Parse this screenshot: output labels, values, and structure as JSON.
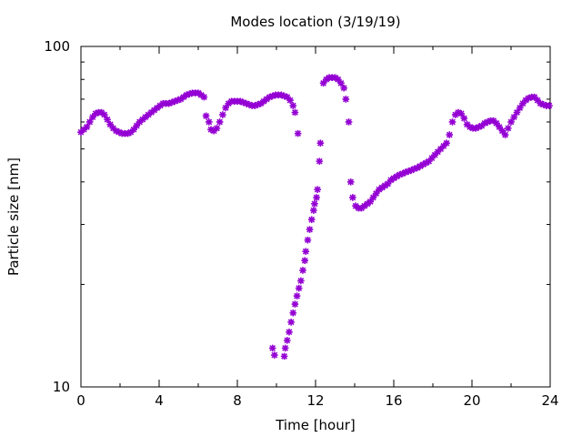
{
  "chart_data": {
    "type": "scatter",
    "title": "Modes location (3/19/19)",
    "xlabel": "Time [hour]",
    "ylabel": "Particle size [nm]",
    "xlim": [
      0,
      24
    ],
    "ylim": [
      10,
      100
    ],
    "yscale": "log",
    "grid": false,
    "x_ticks": [
      0,
      4,
      8,
      12,
      16,
      20,
      24
    ],
    "x_tick_labels": [
      "0",
      "4",
      "8",
      "12",
      "16",
      "20",
      "24"
    ],
    "y_ticks": [
      10,
      100
    ],
    "y_tick_labels": [
      "10",
      "100"
    ],
    "marker_color": "#9400d3",
    "marker": "star",
    "series": [
      {
        "values": [
          [
            0.0,
            56
          ],
          [
            0.15,
            57
          ],
          [
            0.3,
            58
          ],
          [
            0.45,
            60
          ],
          [
            0.6,
            62
          ],
          [
            0.75,
            63.5
          ],
          [
            0.9,
            64
          ],
          [
            1.05,
            64
          ],
          [
            1.2,
            63
          ],
          [
            1.35,
            61
          ],
          [
            1.5,
            59
          ],
          [
            1.65,
            57.5
          ],
          [
            1.8,
            56.5
          ],
          [
            1.95,
            56
          ],
          [
            2.1,
            55.5
          ],
          [
            2.25,
            55.5
          ],
          [
            2.4,
            55.5
          ],
          [
            2.55,
            56
          ],
          [
            2.7,
            57
          ],
          [
            2.85,
            58.5
          ],
          [
            3.0,
            60
          ],
          [
            3.15,
            61
          ],
          [
            3.3,
            62
          ],
          [
            3.45,
            63
          ],
          [
            3.6,
            64
          ],
          [
            3.75,
            65
          ],
          [
            3.9,
            66
          ],
          [
            4.05,
            67
          ],
          [
            4.2,
            68
          ],
          [
            4.35,
            68
          ],
          [
            4.5,
            68
          ],
          [
            4.65,
            68.5
          ],
          [
            4.8,
            69
          ],
          [
            4.95,
            69.5
          ],
          [
            5.1,
            70
          ],
          [
            5.25,
            71
          ],
          [
            5.4,
            72
          ],
          [
            5.55,
            72.5
          ],
          [
            5.7,
            73
          ],
          [
            5.85,
            73
          ],
          [
            6.0,
            73
          ],
          [
            6.15,
            72
          ],
          [
            6.3,
            71
          ],
          [
            6.4,
            62.5
          ],
          [
            6.55,
            60
          ],
          [
            6.65,
            57
          ],
          [
            6.8,
            56.5
          ],
          [
            6.95,
            57.5
          ],
          [
            7.1,
            60
          ],
          [
            7.25,
            63
          ],
          [
            7.4,
            66
          ],
          [
            7.55,
            68
          ],
          [
            7.7,
            69
          ],
          [
            7.85,
            69
          ],
          [
            8.0,
            69
          ],
          [
            8.15,
            69
          ],
          [
            8.3,
            68.5
          ],
          [
            8.45,
            68
          ],
          [
            8.6,
            67.5
          ],
          [
            8.75,
            67
          ],
          [
            8.9,
            67
          ],
          [
            9.05,
            67.5
          ],
          [
            9.2,
            68
          ],
          [
            9.35,
            69
          ],
          [
            9.5,
            70
          ],
          [
            9.65,
            71
          ],
          [
            9.8,
            71.5
          ],
          [
            9.95,
            72
          ],
          [
            10.1,
            72
          ],
          [
            10.25,
            72
          ],
          [
            10.4,
            71.5
          ],
          [
            10.55,
            71
          ],
          [
            10.7,
            69.5
          ],
          [
            10.85,
            67
          ],
          [
            10.95,
            64
          ],
          [
            11.1,
            55.5
          ],
          [
            9.8,
            13.0
          ],
          [
            9.9,
            12.4
          ],
          [
            10.4,
            12.3
          ],
          [
            10.45,
            13.0
          ],
          [
            10.55,
            13.7
          ],
          [
            10.65,
            14.5
          ],
          [
            10.75,
            15.5
          ],
          [
            10.85,
            16.5
          ],
          [
            10.95,
            17.5
          ],
          [
            11.05,
            18.5
          ],
          [
            11.15,
            19.5
          ],
          [
            11.25,
            20.5
          ],
          [
            11.35,
            22
          ],
          [
            11.45,
            23.5
          ],
          [
            11.5,
            25
          ],
          [
            11.6,
            27
          ],
          [
            11.7,
            29
          ],
          [
            11.8,
            31
          ],
          [
            11.9,
            33
          ],
          [
            11.95,
            34.5
          ],
          [
            12.05,
            36
          ],
          [
            12.1,
            38
          ],
          [
            12.2,
            46
          ],
          [
            12.25,
            52
          ],
          [
            12.4,
            78
          ],
          [
            12.55,
            80
          ],
          [
            12.7,
            81
          ],
          [
            12.85,
            81
          ],
          [
            13.0,
            81
          ],
          [
            13.15,
            80
          ],
          [
            13.3,
            78
          ],
          [
            13.45,
            75.5
          ],
          [
            13.55,
            70
          ],
          [
            13.7,
            60
          ],
          [
            13.8,
            40
          ],
          [
            13.9,
            36
          ],
          [
            14.05,
            34
          ],
          [
            14.2,
            33.5
          ],
          [
            14.35,
            33.5
          ],
          [
            14.5,
            34
          ],
          [
            14.65,
            34.5
          ],
          [
            14.8,
            35
          ],
          [
            14.95,
            36
          ],
          [
            15.1,
            37
          ],
          [
            15.25,
            38
          ],
          [
            15.4,
            38.5
          ],
          [
            15.55,
            39
          ],
          [
            15.7,
            39.5
          ],
          [
            15.85,
            40.5
          ],
          [
            16.0,
            41
          ],
          [
            16.15,
            41.5
          ],
          [
            16.3,
            42
          ],
          [
            16.45,
            42.3
          ],
          [
            16.6,
            42.7
          ],
          [
            16.75,
            43
          ],
          [
            16.9,
            43.3
          ],
          [
            17.05,
            43.7
          ],
          [
            17.2,
            44
          ],
          [
            17.35,
            44.5
          ],
          [
            17.5,
            45
          ],
          [
            17.65,
            45.5
          ],
          [
            17.8,
            46
          ],
          [
            17.95,
            47
          ],
          [
            18.1,
            48
          ],
          [
            18.25,
            49
          ],
          [
            18.4,
            50
          ],
          [
            18.55,
            51
          ],
          [
            18.7,
            52
          ],
          [
            18.85,
            55
          ],
          [
            19.0,
            60
          ],
          [
            19.15,
            63
          ],
          [
            19.3,
            64
          ],
          [
            19.45,
            63.5
          ],
          [
            19.6,
            61.5
          ],
          [
            19.75,
            59
          ],
          [
            19.9,
            58
          ],
          [
            20.05,
            57.5
          ],
          [
            20.2,
            57.5
          ],
          [
            20.35,
            58
          ],
          [
            20.5,
            58.5
          ],
          [
            20.65,
            59.5
          ],
          [
            20.8,
            60
          ],
          [
            20.95,
            60.5
          ],
          [
            21.1,
            60.5
          ],
          [
            21.25,
            59.5
          ],
          [
            21.4,
            58
          ],
          [
            21.55,
            56.5
          ],
          [
            21.7,
            55
          ],
          [
            21.85,
            57.5
          ],
          [
            22.0,
            60
          ],
          [
            22.15,
            62
          ],
          [
            22.3,
            64
          ],
          [
            22.45,
            66
          ],
          [
            22.6,
            68
          ],
          [
            22.75,
            69.5
          ],
          [
            22.9,
            70.5
          ],
          [
            23.05,
            71
          ],
          [
            23.2,
            71
          ],
          [
            23.35,
            69.5
          ],
          [
            23.5,
            68
          ],
          [
            23.65,
            67.5
          ],
          [
            23.8,
            67
          ],
          [
            23.95,
            67
          ]
        ]
      }
    ]
  }
}
